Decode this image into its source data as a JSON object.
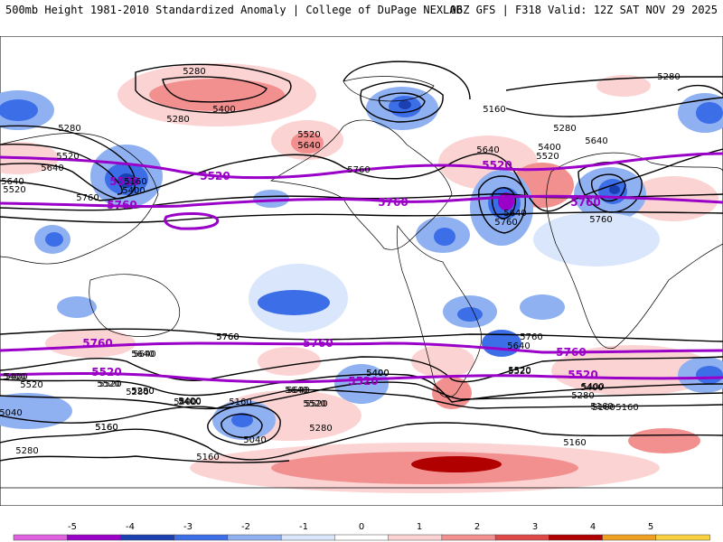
{
  "header": {
    "left": "500mb Height 1981-2010 Standardized Anomaly | College of DuPage NEXLAB",
    "right": "06Z GFS | F318 Valid: 12Z SAT NOV 29 2025"
  },
  "colorbar": {
    "ticks": [
      "-5",
      "-4",
      "-3",
      "-2",
      "-1",
      "0",
      "1",
      "2",
      "3",
      "4",
      "5"
    ],
    "colors": [
      "#e060e0",
      "#9a00c8",
      "#1a3fb0",
      "#3c6ee8",
      "#8fb1f2",
      "#d9e6fb",
      "#ffffff",
      "#fbd3d3",
      "#f29090",
      "#e04848",
      "#b00000",
      "#f0a020",
      "#f8d040"
    ]
  },
  "contours": {
    "purple_labels": [
      "5520",
      "5520",
      "5520",
      "5760",
      "5760",
      "5760",
      "5760",
      "5520",
      "5760",
      "5520",
      "5760",
      "5520"
    ],
    "black_labels": [
      "5280",
      "5400",
      "5280",
      "5280",
      "5520",
      "5640",
      "5760",
      "5160",
      "5400",
      "5520",
      "5640",
      "5520",
      "5640",
      "5640",
      "5400",
      "5520",
      "5280",
      "5640",
      "5280",
      "5760",
      "5760",
      "5640",
      "5760",
      "5760",
      "5400",
      "5520",
      "5160",
      "5160",
      "5640",
      "5520",
      "5400",
      "5640",
      "5520",
      "5400",
      "5280",
      "5160",
      "5400",
      "5640",
      "5520",
      "5280",
      "5160",
      "5040",
      "5280",
      "5160",
      "5160",
      "5040",
      "5520",
      "5400",
      "5400",
      "5520",
      "5280",
      "5160",
      "5160",
      "5280",
      "5760",
      "5760",
      "5640",
      "5400",
      "5280",
      "5640",
      "5520",
      "5400",
      "5400",
      "5160"
    ]
  }
}
